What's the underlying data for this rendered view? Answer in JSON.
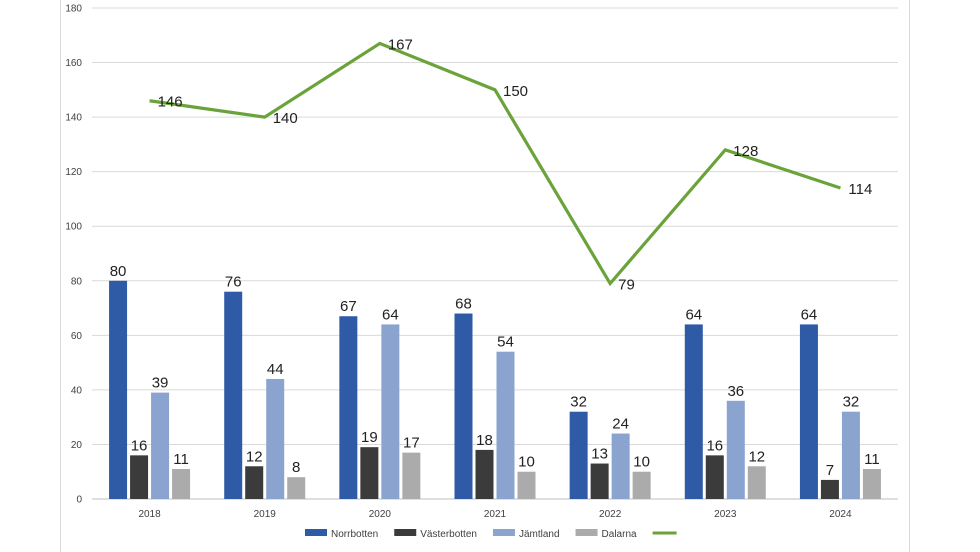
{
  "chart_data": {
    "type": "bar",
    "categories": [
      "2018",
      "2019",
      "2020",
      "2021",
      "2022",
      "2023",
      "2024"
    ],
    "series": [
      {
        "name": "Norrbotten",
        "type": "bar",
        "color": "#2e5aa6",
        "values": [
          80,
          76,
          67,
          68,
          32,
          64,
          64
        ]
      },
      {
        "name": "Västerbotten",
        "type": "bar",
        "color": "#3b3b3b",
        "values": [
          16,
          12,
          19,
          18,
          13,
          16,
          7
        ]
      },
      {
        "name": "Jämtland",
        "type": "bar",
        "color": "#8aa3cf",
        "values": [
          39,
          44,
          64,
          54,
          24,
          36,
          32
        ]
      },
      {
        "name": "Dalarna",
        "type": "bar",
        "color": "#ababab",
        "values": [
          11,
          8,
          17,
          10,
          10,
          12,
          11
        ]
      },
      {
        "name": "",
        "type": "line",
        "color": "#6aa33a",
        "values": [
          146,
          140,
          167,
          150,
          79,
          128,
          114
        ]
      }
    ],
    "title": "",
    "xlabel": "",
    "ylabel": "",
    "ylim": [
      0,
      180
    ],
    "yticks": [
      0,
      20,
      40,
      60,
      80,
      100,
      120,
      140,
      160,
      180
    ],
    "grid": true,
    "legend_position": "bottom"
  }
}
